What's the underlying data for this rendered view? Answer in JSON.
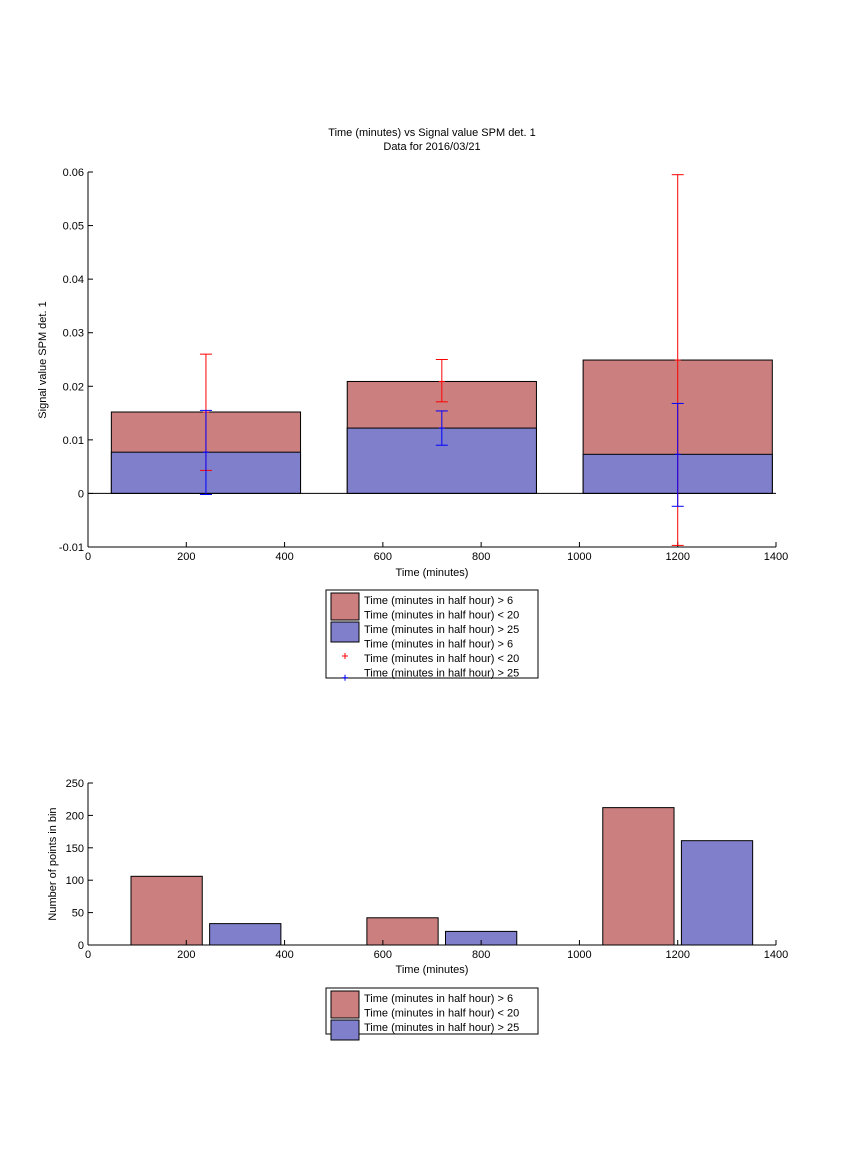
{
  "chart_data": [
    {
      "type": "bar",
      "title": "Time (minutes) vs Signal value SPM det. 1",
      "subtitle": "Data for 2016/03/21",
      "xlabel": "Time (minutes)",
      "ylabel": "Signal value SPM det. 1",
      "xlim": [
        0,
        1400
      ],
      "ylim": [
        -0.01,
        0.06
      ],
      "xticks": [
        0,
        200,
        400,
        600,
        800,
        1000,
        1200,
        1400
      ],
      "yticks": [
        -0.01,
        0,
        0.01,
        0.02,
        0.03,
        0.04,
        0.05,
        0.06
      ],
      "ytick_labels": [
        "-0.01",
        "0",
        "0.01",
        "0.02",
        "0.03",
        "0.04",
        "0.05",
        "0.06"
      ],
      "bar_mode": "overlay",
      "x": [
        240,
        720,
        1200
      ],
      "bar_width": 385,
      "series": [
        {
          "name": "Time (minutes in half hour) > 6\nTime (minutes in half hour) < 20",
          "color": "#cc7f7f",
          "values": [
            0.0152,
            0.0209,
            0.0249
          ]
        },
        {
          "name": "Time (minutes in half hour) > 25",
          "color": "#7f7fcc",
          "values": [
            0.0077,
            0.0122,
            0.0073
          ]
        }
      ],
      "errorbars": [
        {
          "name": "Time (minutes in half hour) > 6\nTime (minutes in half hour) < 20",
          "color": "#ff0000",
          "x": [
            240,
            720,
            1200
          ],
          "center": [
            0.0152,
            0.0209,
            0.0249
          ],
          "lower": [
            0.0043,
            0.0171,
            -0.0097
          ],
          "upper": [
            0.026,
            0.025,
            0.0595
          ]
        },
        {
          "name": "Time (minutes in half hour) > 25",
          "color": "#0000ff",
          "x": [
            240,
            720,
            1200
          ],
          "center": [
            0.0077,
            0.0122,
            0.0073
          ],
          "lower": [
            -0.0002,
            0.009,
            -0.0024
          ],
          "upper": [
            0.0155,
            0.0154,
            0.0168
          ]
        }
      ],
      "legend": "below",
      "grid": false
    },
    {
      "type": "bar",
      "xlabel": "Time (minutes)",
      "ylabel": "Number of points in bin",
      "xlim": [
        0,
        1400
      ],
      "ylim": [
        0,
        250
      ],
      "xticks": [
        0,
        200,
        400,
        600,
        800,
        1000,
        1200,
        1400
      ],
      "yticks": [
        0,
        50,
        100,
        150,
        200,
        250
      ],
      "ytick_labels": [
        "0",
        "50",
        "100",
        "150",
        "200",
        "250"
      ],
      "bar_mode": "grouped",
      "x": [
        240,
        720,
        1200
      ],
      "bar_width": 145,
      "group_offset": 80,
      "series": [
        {
          "name": "Time (minutes in half hour) > 6\nTime (minutes in half hour) < 20",
          "color": "#cc7f7f",
          "values": [
            106,
            42,
            212
          ]
        },
        {
          "name": "Time (minutes in half hour) > 25",
          "color": "#7f7fcc",
          "values": [
            33,
            21,
            161
          ]
        }
      ],
      "legend": "below",
      "grid": false
    }
  ]
}
